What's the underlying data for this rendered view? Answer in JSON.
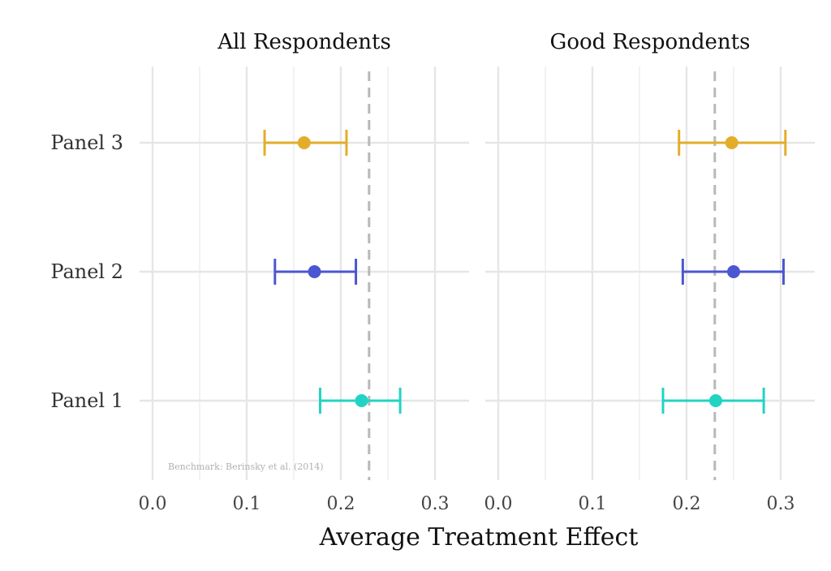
{
  "chart_data": {
    "type": "scatter",
    "subtype": "point-range (coefficient plot) with faceted panels",
    "xlabel": "Average Treatment Effect",
    "ylabel": "",
    "xlim": [
      0.0,
      0.34
    ],
    "x_ticks": [
      "0.0",
      "0.1",
      "0.2",
      "0.3"
    ],
    "categories": [
      "Panel 3",
      "Panel 2",
      "Panel 1"
    ],
    "grid": true,
    "benchmark": {
      "value": 0.23,
      "note": "Benchmark: Berinsky et al. (2014)"
    },
    "colors": {
      "Panel 1": "#22d3c4",
      "Panel 2": "#4b56d2",
      "Panel 3": "#e3ad2a"
    },
    "facets": [
      {
        "title": "All Respondents",
        "points": [
          {
            "category": "Panel 3",
            "estimate": 0.161,
            "lower": 0.119,
            "upper": 0.206
          },
          {
            "category": "Panel 2",
            "estimate": 0.172,
            "lower": 0.13,
            "upper": 0.216
          },
          {
            "category": "Panel 1",
            "estimate": 0.222,
            "lower": 0.178,
            "upper": 0.263
          }
        ]
      },
      {
        "title": "Good Respondents",
        "points": [
          {
            "category": "Panel 3",
            "estimate": 0.248,
            "lower": 0.192,
            "upper": 0.305
          },
          {
            "category": "Panel 2",
            "estimate": 0.25,
            "lower": 0.196,
            "upper": 0.303
          },
          {
            "category": "Panel 1",
            "estimate": 0.231,
            "lower": 0.175,
            "upper": 0.282
          }
        ]
      }
    ]
  }
}
